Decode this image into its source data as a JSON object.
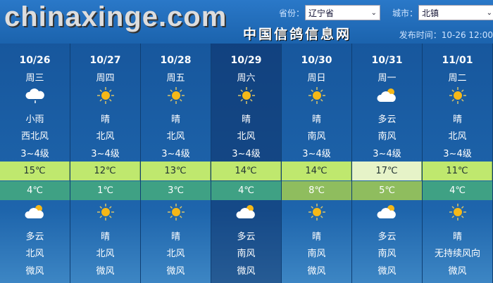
{
  "header": {
    "province_label": "省份：",
    "province_value": "辽宁省",
    "city_label": "城市：",
    "city_value": "北镇",
    "publish_time": "发布时间：10-26 12:00"
  },
  "colors": {
    "high_row": "#bfe86e",
    "high_row_warm": "#e6f3c8",
    "low_row": "#3fa184",
    "low_row_warm": "#8fbd5e",
    "highlight_column": "10/29"
  },
  "days": [
    {
      "date": "10/26",
      "weekday": "周三",
      "day_icon": "cloud-rain-icon",
      "day_weather": "小雨",
      "day_wind": "西北风",
      "day_level": "3~4级",
      "high": "15℃",
      "low": "4℃",
      "night_icon": "partly-cloudy-icon",
      "night_weather": "多云",
      "night_wind": "北风",
      "night_level": "微风"
    },
    {
      "date": "10/27",
      "weekday": "周四",
      "day_icon": "sun-icon",
      "day_weather": "晴",
      "day_wind": "北风",
      "day_level": "3~4级",
      "high": "12℃",
      "low": "1℃",
      "night_icon": "sun-icon",
      "night_weather": "晴",
      "night_wind": "北风",
      "night_level": "微风"
    },
    {
      "date": "10/28",
      "weekday": "周五",
      "day_icon": "sun-icon",
      "day_weather": "晴",
      "day_wind": "北风",
      "day_level": "3~4级",
      "high": "13℃",
      "low": "3℃",
      "night_icon": "sun-icon",
      "night_weather": "晴",
      "night_wind": "北风",
      "night_level": "微风"
    },
    {
      "date": "10/29",
      "weekday": "周六",
      "day_icon": "sun-icon",
      "day_weather": "晴",
      "day_wind": "北风",
      "day_level": "3~4级",
      "high": "14℃",
      "low": "4℃",
      "night_icon": "partly-cloudy-icon",
      "night_weather": "多云",
      "night_wind": "南风",
      "night_level": "微风"
    },
    {
      "date": "10/30",
      "weekday": "周日",
      "day_icon": "sun-icon",
      "day_weather": "晴",
      "day_wind": "南风",
      "day_level": "3~4级",
      "high": "14℃",
      "low": "8℃",
      "night_icon": "sun-icon",
      "night_weather": "晴",
      "night_wind": "南风",
      "night_level": "微风"
    },
    {
      "date": "10/31",
      "weekday": "周一",
      "day_icon": "partly-cloudy-icon",
      "day_weather": "多云",
      "day_wind": "南风",
      "day_level": "3~4级",
      "high": "17℃",
      "low": "5℃",
      "night_icon": "partly-cloudy-icon",
      "night_weather": "多云",
      "night_wind": "南风",
      "night_level": "微风"
    },
    {
      "date": "11/01",
      "weekday": "周二",
      "day_icon": "sun-icon",
      "day_weather": "晴",
      "day_wind": "北风",
      "day_level": "3~4级",
      "high": "11℃",
      "low": "4℃",
      "night_icon": "sun-icon",
      "night_weather": "晴",
      "night_wind": "无持续风向",
      "night_level": "微风"
    }
  ],
  "watermark": {
    "text": "chinaxinge.com",
    "subtext": "中国信鸽信息网"
  }
}
